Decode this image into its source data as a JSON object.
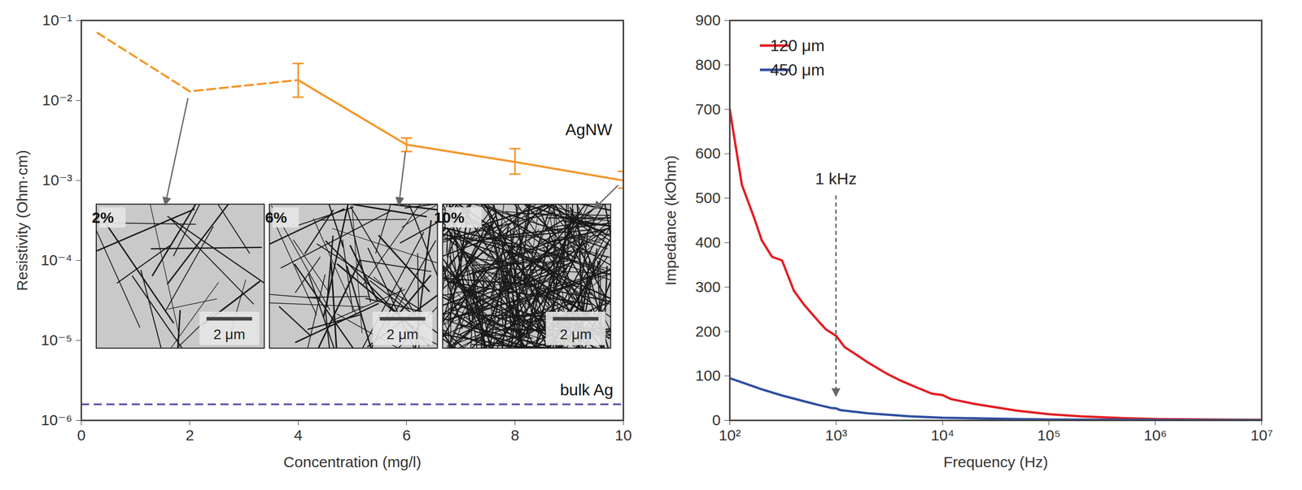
{
  "chart_data": [
    {
      "type": "line",
      "x_label": "Concentration (mg/l)",
      "y_label": "Resistivity (Ohm·cm)",
      "log": "y",
      "xlim": [
        0,
        10
      ],
      "xticks": [
        0,
        2,
        4,
        6,
        8,
        10
      ],
      "ylim": [
        1e-06,
        0.1
      ],
      "yticks": [
        {
          "value": 1e-06,
          "label": "10⁻⁶"
        },
        {
          "value": 1e-05,
          "label": "10⁻⁵"
        },
        {
          "value": 0.0001,
          "label": "10⁻⁴"
        },
        {
          "value": 0.001,
          "label": "10⁻³"
        },
        {
          "value": 0.01,
          "label": "10⁻²"
        },
        {
          "value": 0.1,
          "label": "10⁻¹"
        }
      ],
      "series": [
        {
          "name": "AgNW",
          "color": "#f5962a",
          "line_style": "dashed",
          "x": [
            0.3,
            2,
            4
          ],
          "values": [
            0.07,
            0.013,
            0.018
          ]
        },
        {
          "name": "AgNW",
          "color": "#f5962a",
          "line_style": "solid",
          "x": [
            4,
            6,
            8,
            10
          ],
          "values": [
            0.018,
            0.0028,
            0.0017,
            0.001
          ],
          "error_low": [
            0.011,
            0.0023,
            0.0012,
            0.0008
          ],
          "error_high": [
            0.029,
            0.0034,
            0.0025,
            0.0013
          ]
        },
        {
          "name": "bulk Ag",
          "type": "hline",
          "color": "#5855a8",
          "line_style": "dashed",
          "values": [
            1.59e-06
          ]
        }
      ],
      "insets": [
        {
          "label": "2%",
          "scale_bar": "2 μm",
          "x": 2
        },
        {
          "label": "6%",
          "scale_bar": "2 μm",
          "x": 6
        },
        {
          "label": "10%",
          "scale_bar": "2 μm",
          "x": 10
        }
      ]
    },
    {
      "type": "line",
      "x_label": "Frequency (Hz)",
      "y_label": "Impedance (kOhm)",
      "log": "x",
      "xlim": [
        100,
        10000000
      ],
      "xticks": [
        {
          "value": 100,
          "label": "10²"
        },
        {
          "value": 1000,
          "label": "10³"
        },
        {
          "value": 10000,
          "label": "10⁴"
        },
        {
          "value": 100000,
          "label": "10⁵"
        },
        {
          "value": 1000000,
          "label": "10⁶"
        },
        {
          "value": 10000000,
          "label": "10⁷"
        }
      ],
      "ylim": [
        0,
        900
      ],
      "yticks": [
        0,
        100,
        200,
        300,
        400,
        500,
        600,
        700,
        800,
        900
      ],
      "legend": "top-left",
      "series": [
        {
          "name": "120 μm",
          "color": "#e31e24",
          "x": [
            100,
            130,
            170,
            200,
            250,
            310,
            400,
            500,
            700,
            800,
            1000,
            1200,
            1500,
            2000,
            3000,
            4000,
            6000,
            8000,
            10000,
            12000,
            20000,
            50000,
            100000,
            200000,
            500000,
            1000000,
            10000000
          ],
          "values": [
            700,
            530,
            455,
            405,
            368,
            360,
            292,
            260,
            220,
            205,
            190,
            165,
            150,
            130,
            105,
            90,
            72,
            60,
            57,
            48,
            37,
            22,
            14,
            9,
            5,
            3,
            1
          ]
        },
        {
          "name": "450 μm",
          "color": "#2e4ea0",
          "x": [
            100,
            200,
            300,
            500,
            700,
            900,
            1000,
            1100,
            2000,
            5000,
            10000,
            100000,
            1000000,
            10000000
          ],
          "values": [
            95,
            70,
            57,
            43,
            34,
            28,
            27,
            23,
            16,
            9,
            6,
            2,
            1,
            0.5
          ]
        }
      ],
      "annotations": [
        {
          "text": "1 kHz",
          "x": 1000
        }
      ]
    }
  ]
}
